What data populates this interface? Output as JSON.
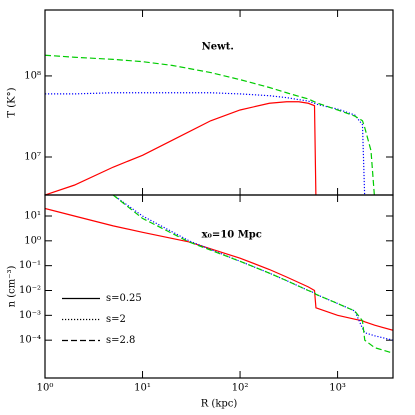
{
  "chart_data": [
    {
      "type": "line",
      "annotation": "Newt.",
      "ylabel": "T (K°)",
      "xscale": "log",
      "yscale": "log",
      "x": [
        1,
        2,
        5,
        10,
        20,
        50,
        100,
        200,
        300,
        400,
        500,
        580,
        600,
        700,
        1000,
        1500,
        1800,
        1900,
        2200,
        2400
      ],
      "series": [
        {
          "name": "s=0.25",
          "color": "#ff0000",
          "dash": "solid",
          "values": [
            3400000,
            4500000,
            7500000,
            10500000,
            16000000,
            28000000,
            38000000,
            46000000,
            48000000,
            48000000,
            46000000,
            43000000,
            3000000,
            null,
            null,
            null,
            null,
            null,
            null,
            null
          ]
        },
        {
          "name": "s=2",
          "color": "#0000ff",
          "dash": "dotted",
          "values": [
            60000000,
            60000000,
            62000000,
            62000000,
            62000000,
            62000000,
            60000000,
            57000000,
            54000000,
            51000000,
            49000000,
            46000000,
            45000000,
            43000000,
            39000000,
            33000000,
            25000000,
            3000000,
            null,
            null
          ]
        },
        {
          "name": "s=2.8",
          "color": "#00cc00",
          "dash": "dashed",
          "values": [
            180000000,
            170000000,
            160000000,
            150000000,
            135000000,
            110000000,
            90000000,
            72000000,
            62000000,
            56000000,
            52000000,
            48000000,
            47000000,
            44000000,
            38000000,
            32000000,
            28000000,
            23000000,
            12000000,
            3000000
          ]
        }
      ],
      "xlim": [
        1,
        3700
      ],
      "xticks": [
        1,
        10,
        100,
        1000
      ],
      "ylim": [
        3400000,
        650000000
      ],
      "yticks": [
        {
          "value": 10000000,
          "label": "10⁷"
        },
        {
          "value": 100000000,
          "label": "10⁸"
        }
      ]
    },
    {
      "type": "line",
      "annotation": "x₀=10 Mpc",
      "ylabel": "n (cm⁻³)",
      "xlabel": "R (kpc)",
      "xscale": "log",
      "yscale": "log",
      "legend": "center left",
      "legend_color": "#000000",
      "x": [
        1,
        2,
        5,
        10,
        30,
        100,
        200,
        300,
        500,
        580,
        600,
        1000,
        1500,
        1800,
        1900,
        2400,
        3700
      ],
      "series": [
        {
          "name": "s=0.25",
          "color": "#ff0000",
          "dash": "solid",
          "values": [
            20,
            10,
            4,
            2.2,
            0.9,
            0.2,
            0.07,
            0.035,
            0.014,
            0.01,
            0.002,
            0.001,
            0.0007,
            0.0006,
            0.00055,
            0.0004,
            0.00025
          ]
        },
        {
          "name": "s=2",
          "color": "#0000ff",
          "dash": "dotted",
          "values": [
            null,
            null,
            70,
            10,
            1,
            0.15,
            0.05,
            0.025,
            0.01,
            0.008,
            0.007,
            0.003,
            0.0015,
            0.0003,
            0.0002,
            0.00015,
            0.0001
          ]
        },
        {
          "name": "s=2.8",
          "color": "#00cc00",
          "dash": "dashed",
          "values": [
            null,
            null,
            70,
            8,
            0.9,
            0.15,
            0.05,
            0.025,
            0.01,
            0.008,
            0.007,
            0.003,
            0.0015,
            0.0006,
            0.0001,
            5e-05,
            3e-05
          ]
        }
      ],
      "xlim": [
        1,
        3700
      ],
      "xticks": [
        {
          "value": 1,
          "label": "10⁰"
        },
        {
          "value": 10,
          "label": "10¹"
        },
        {
          "value": 100,
          "label": "10²"
        },
        {
          "value": 1000,
          "label": "10³"
        }
      ],
      "ylim": [
        3e-06,
        70
      ],
      "yticks": [
        {
          "value": 0.0001,
          "label": "10⁻⁴"
        },
        {
          "value": 0.001,
          "label": "10⁻³"
        },
        {
          "value": 0.01,
          "label": "10⁻²"
        },
        {
          "value": 0.1,
          "label": "10⁻¹"
        },
        {
          "value": 1,
          "label": "10⁰"
        },
        {
          "value": 10,
          "label": "10¹"
        }
      ]
    }
  ]
}
